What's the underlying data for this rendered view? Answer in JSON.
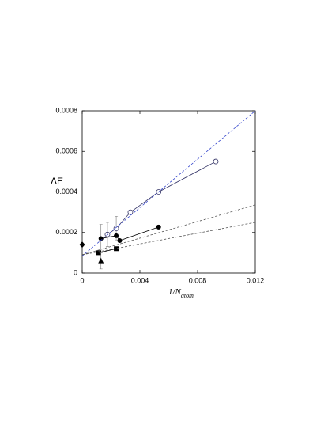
{
  "chart_data": {
    "type": "scatter",
    "xlabel": {
      "main": "1/N",
      "sub": "atom"
    },
    "ylabel": "ΔE",
    "xlim": [
      0,
      0.012
    ],
    "xticks": [
      0,
      0.004,
      0.008,
      0.012
    ],
    "ylim": [
      0,
      0.0008
    ],
    "yticks": [
      0,
      0.0002,
      0.0004,
      0.0006,
      0.0008
    ],
    "series": [
      {
        "x": [
          0.00175,
          0.00236,
          0.00334,
          0.0053,
          0.00926
        ],
        "values": [
          0.00019,
          0.00022,
          0.0003,
          0.0004,
          0.00055
        ],
        "errors": [
          6e-05,
          6e-05,
          null,
          null,
          null
        ],
        "marker": "open-circle",
        "line": "solid",
        "color": "#333366"
      },
      {
        "x": [
          0.0013,
          0.00236,
          0.0026,
          0.0053
        ],
        "values": [
          0.00017,
          0.000184,
          0.00016,
          0.000227
        ],
        "errors": [
          7e-05,
          null,
          null,
          1e-05
        ],
        "marker": "circle",
        "line": "solid",
        "color": "#000000"
      },
      {
        "x": [
          0.00115,
          0.00236
        ],
        "values": [
          0.0001,
          0.00012
        ],
        "marker": "square",
        "line": "solid",
        "color": "#000000"
      },
      {
        "x": [
          0.0013
        ],
        "values": [
          6e-05
        ],
        "errors": [
          4e-05
        ],
        "marker": "triangle",
        "line": "none",
        "color": "#000000"
      },
      {
        "x": [
          0
        ],
        "values": [
          0.00014
        ],
        "marker": "diamond",
        "line": "none",
        "color": "#000000"
      },
      {
        "x": [
          0,
          0.012
        ],
        "values": [
          8.4e-05,
          0.0008
        ],
        "marker": "none",
        "line": "dashed",
        "color": "#3344cc"
      },
      {
        "x": [
          0,
          0.012
        ],
        "values": [
          9e-05,
          0.000336
        ],
        "marker": "none",
        "line": "dashed",
        "color": "#555555"
      },
      {
        "x": [
          0,
          0.012
        ],
        "values": [
          9e-05,
          0.00025
        ],
        "marker": "none",
        "line": "dashed",
        "color": "#555555"
      }
    ]
  }
}
